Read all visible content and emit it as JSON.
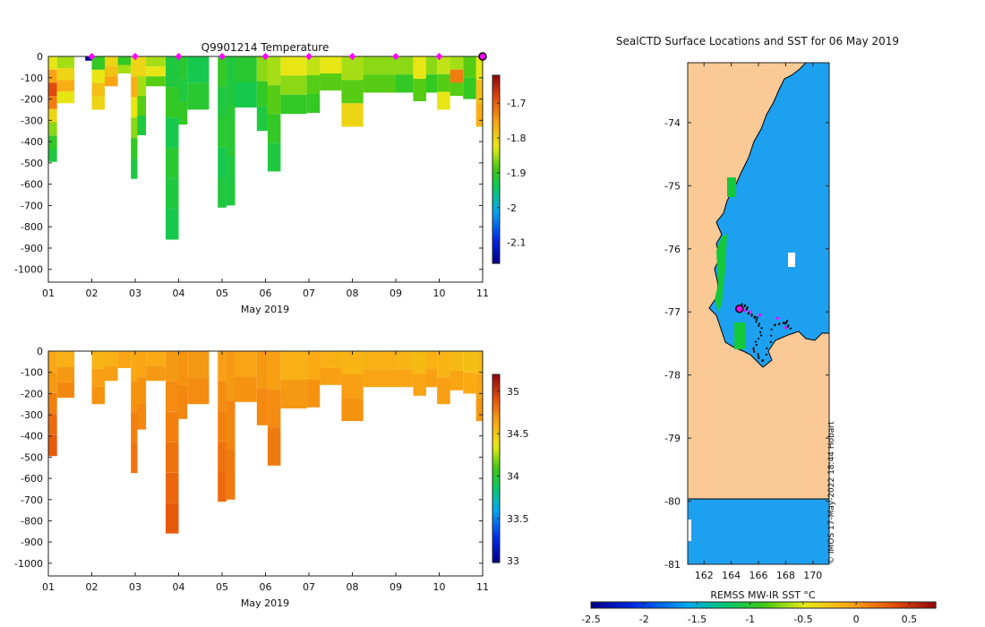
{
  "chart_data": [
    {
      "id": "temp",
      "type": "heatmap",
      "title": "Q9901214  Temperature",
      "xlabel": "May 2019",
      "ylabel": "",
      "xticks": [
        "01",
        "02",
        "03",
        "04",
        "05",
        "06",
        "07",
        "08",
        "09",
        "10",
        "11"
      ],
      "xlim": [
        1,
        11
      ],
      "ylim": [
        -1060,
        0
      ],
      "yticks": [
        0,
        -100,
        -200,
        -300,
        -400,
        -500,
        -600,
        -700,
        -800,
        -900,
        -1000
      ],
      "colorbar": {
        "ticks": [
          -1.7,
          -1.8,
          -1.9,
          -2,
          -2.1
        ],
        "range": [
          -2.16,
          -1.62
        ]
      },
      "markers": [
        2,
        3,
        4,
        5,
        6,
        7,
        8,
        9,
        10
      ],
      "highlight_x": 11,
      "profiles": [
        {
          "x": 1.0,
          "w": 0.2,
          "d": 495,
          "v": [
            -1.82,
            -1.75,
            -1.68,
            -1.72,
            -1.8,
            -1.86,
            -1.9,
            -1.92
          ]
        },
        {
          "x": 1.2,
          "w": 0.4,
          "d": 220,
          "v": [
            -1.85,
            -1.8,
            -1.76,
            -1.82
          ]
        },
        {
          "x": 1.85,
          "w": 0.3,
          "d": 20,
          "v": [
            -2.16
          ]
        },
        {
          "x": 2.0,
          "w": 0.3,
          "d": 250,
          "v": [
            -1.9,
            -1.82,
            -1.78,
            -1.8
          ]
        },
        {
          "x": 2.3,
          "w": 0.3,
          "d": 140,
          "v": [
            -1.8,
            -1.78,
            -1.75
          ]
        },
        {
          "x": 2.6,
          "w": 0.3,
          "d": 80,
          "v": [
            -1.9,
            -1.85
          ]
        },
        {
          "x": 2.9,
          "w": 0.15,
          "d": 575,
          "v": [
            -1.8,
            -1.76,
            -1.82,
            -1.86,
            -1.9,
            -1.92
          ]
        },
        {
          "x": 3.05,
          "w": 0.2,
          "d": 370,
          "v": [
            -1.8,
            -1.85,
            -1.88,
            -1.92
          ]
        },
        {
          "x": 3.25,
          "w": 0.45,
          "d": 140,
          "v": [
            -1.85,
            -1.82,
            -1.88
          ]
        },
        {
          "x": 3.7,
          "w": 0.3,
          "d": 860,
          "v": [
            -1.92,
            -1.9,
            -1.93,
            -1.91,
            -1.92,
            -1.93
          ]
        },
        {
          "x": 4.0,
          "w": 0.2,
          "d": 320,
          "v": [
            -1.91,
            -1.92,
            -1.9
          ]
        },
        {
          "x": 4.2,
          "w": 0.5,
          "d": 250,
          "v": [
            -1.93,
            -1.91
          ]
        },
        {
          "x": 4.9,
          "w": 0.2,
          "d": 710,
          "v": [
            -1.9,
            -1.92,
            -1.91,
            -1.93,
            -1.92
          ]
        },
        {
          "x": 5.1,
          "w": 0.2,
          "d": 700,
          "v": [
            -1.92,
            -1.91,
            -1.92
          ]
        },
        {
          "x": 5.3,
          "w": 0.5,
          "d": 240,
          "v": [
            -1.91,
            -1.93
          ]
        },
        {
          "x": 5.8,
          "w": 0.25,
          "d": 350,
          "v": [
            -1.86,
            -1.9,
            -1.92
          ]
        },
        {
          "x": 6.05,
          "w": 0.3,
          "d": 540,
          "v": [
            -1.85,
            -1.88,
            -1.9,
            -1.92
          ]
        },
        {
          "x": 6.35,
          "w": 0.6,
          "d": 270,
          "v": [
            -1.82,
            -1.86,
            -1.9
          ]
        },
        {
          "x": 6.95,
          "w": 0.3,
          "d": 265,
          "v": [
            -1.84,
            -1.88,
            -1.9
          ]
        },
        {
          "x": 7.25,
          "w": 0.5,
          "d": 160,
          "v": [
            -1.82,
            -1.88
          ]
        },
        {
          "x": 7.75,
          "w": 0.5,
          "d": 330,
          "v": [
            -1.85,
            -1.88,
            -1.8
          ]
        },
        {
          "x": 8.25,
          "w": 0.75,
          "d": 170,
          "v": [
            -1.86,
            -1.88
          ]
        },
        {
          "x": 9.0,
          "w": 0.4,
          "d": 170,
          "v": [
            -1.86,
            -1.9
          ]
        },
        {
          "x": 9.4,
          "w": 0.3,
          "d": 210,
          "v": [
            -1.82,
            -1.88
          ]
        },
        {
          "x": 9.7,
          "w": 0.25,
          "d": 170,
          "v": [
            -1.86,
            -1.9
          ]
        },
        {
          "x": 9.95,
          "w": 0.3,
          "d": 250,
          "v": [
            -1.84,
            -1.88,
            -1.82
          ]
        },
        {
          "x": 10.25,
          "w": 0.3,
          "d": 185,
          "v": [
            -1.85,
            -1.72,
            -1.88
          ]
        },
        {
          "x": 10.55,
          "w": 0.3,
          "d": 200,
          "v": [
            -1.88,
            -1.9
          ]
        },
        {
          "x": 10.85,
          "w": 0.15,
          "d": 330,
          "v": [
            -1.82,
            -1.78,
            -1.76
          ]
        }
      ]
    },
    {
      "id": "sal",
      "type": "heatmap",
      "title": "",
      "xlabel": "May 2019",
      "ylabel": "",
      "xticks": [
        "01",
        "02",
        "03",
        "04",
        "05",
        "06",
        "07",
        "08",
        "09",
        "10",
        "11"
      ],
      "xlim": [
        1,
        11
      ],
      "ylim": [
        -1060,
        0
      ],
      "yticks": [
        0,
        -100,
        -200,
        -300,
        -400,
        -500,
        -600,
        -700,
        -800,
        -900,
        -1000
      ],
      "colorbar": {
        "ticks": [
          35,
          34.5,
          34,
          33.5,
          33
        ],
        "range": [
          32.98,
          35.2
        ]
      },
      "profiles": [
        {
          "x": 1.0,
          "w": 0.2,
          "d": 495,
          "v": [
            34.65,
            34.7,
            34.78,
            34.85,
            34.9
          ]
        },
        {
          "x": 1.2,
          "w": 0.4,
          "d": 220,
          "v": [
            34.62,
            34.7,
            34.75
          ]
        },
        {
          "x": 2.0,
          "w": 0.3,
          "d": 250,
          "v": [
            34.6,
            34.68,
            34.72
          ]
        },
        {
          "x": 2.3,
          "w": 0.3,
          "d": 140,
          "v": [
            34.62,
            34.68
          ]
        },
        {
          "x": 2.6,
          "w": 0.3,
          "d": 80,
          "v": [
            34.66
          ]
        },
        {
          "x": 2.9,
          "w": 0.15,
          "d": 575,
          "v": [
            34.65,
            34.72,
            34.78,
            34.82
          ]
        },
        {
          "x": 3.05,
          "w": 0.2,
          "d": 370,
          "v": [
            34.66,
            34.72,
            34.76
          ]
        },
        {
          "x": 3.25,
          "w": 0.45,
          "d": 140,
          "v": [
            34.64,
            34.7
          ]
        },
        {
          "x": 3.7,
          "w": 0.3,
          "d": 860,
          "v": [
            34.7,
            34.74,
            34.78,
            34.82,
            34.86,
            34.9
          ]
        },
        {
          "x": 4.0,
          "w": 0.2,
          "d": 320,
          "v": [
            34.72,
            34.76
          ]
        },
        {
          "x": 4.2,
          "w": 0.5,
          "d": 250,
          "v": [
            34.7,
            34.74
          ]
        },
        {
          "x": 4.9,
          "w": 0.2,
          "d": 710,
          "v": [
            34.68,
            34.74,
            34.78,
            34.82,
            34.85
          ]
        },
        {
          "x": 5.1,
          "w": 0.2,
          "d": 700,
          "v": [
            34.7,
            34.76,
            34.8
          ]
        },
        {
          "x": 5.3,
          "w": 0.5,
          "d": 240,
          "v": [
            34.66,
            34.72
          ]
        },
        {
          "x": 5.8,
          "w": 0.25,
          "d": 350,
          "v": [
            34.7,
            34.75
          ]
        },
        {
          "x": 6.05,
          "w": 0.3,
          "d": 540,
          "v": [
            34.68,
            34.74,
            34.8
          ]
        },
        {
          "x": 6.35,
          "w": 0.6,
          "d": 270,
          "v": [
            34.62,
            34.7
          ]
        },
        {
          "x": 6.95,
          "w": 0.3,
          "d": 265,
          "v": [
            34.64,
            34.72
          ]
        },
        {
          "x": 7.25,
          "w": 0.5,
          "d": 160,
          "v": [
            34.62,
            34.68
          ]
        },
        {
          "x": 7.75,
          "w": 0.5,
          "d": 330,
          "v": [
            34.6,
            34.68,
            34.72
          ]
        },
        {
          "x": 8.25,
          "w": 0.75,
          "d": 170,
          "v": [
            34.62,
            34.66
          ]
        },
        {
          "x": 9.0,
          "w": 0.4,
          "d": 170,
          "v": [
            34.6,
            34.66
          ]
        },
        {
          "x": 9.4,
          "w": 0.3,
          "d": 210,
          "v": [
            34.58,
            34.66
          ]
        },
        {
          "x": 9.7,
          "w": 0.25,
          "d": 170,
          "v": [
            34.62,
            34.68
          ]
        },
        {
          "x": 9.95,
          "w": 0.3,
          "d": 250,
          "v": [
            34.6,
            34.68
          ]
        },
        {
          "x": 10.25,
          "w": 0.3,
          "d": 185,
          "v": [
            34.58,
            34.66
          ]
        },
        {
          "x": 10.55,
          "w": 0.3,
          "d": 200,
          "v": [
            34.56,
            34.64
          ]
        },
        {
          "x": 10.85,
          "w": 0.15,
          "d": 330,
          "v": [
            34.58,
            34.66,
            34.7
          ]
        }
      ]
    },
    {
      "id": "map",
      "type": "map",
      "title": "SealCTD Surface Locations and SST for 06 May 2019",
      "xlabel": "",
      "xticks": [
        "162",
        "164",
        "166",
        "168",
        "170"
      ],
      "xlim": [
        160.8,
        171.2
      ],
      "yticks": [
        "-74",
        "-75",
        "-76",
        "-77",
        "-78",
        "-79",
        "-80",
        "-81"
      ],
      "ylim": [
        -81.0,
        -73.05
      ],
      "sst_value": -1.4,
      "colorbar": {
        "label": "REMSS MW-IR SST °C",
        "ticks": [
          "-2.5",
          "-2",
          "-1.5",
          "-1",
          "-0.5",
          "0",
          "0.5"
        ],
        "range": [
          -2.5,
          0.75
        ]
      },
      "current_location": {
        "lon": 164.6,
        "lat": -76.95
      },
      "track": [
        [
          164.9,
          -76.9
        ],
        [
          165.3,
          -77.0
        ],
        [
          165.8,
          -77.1
        ],
        [
          166.2,
          -77.3
        ],
        [
          165.6,
          -77.6
        ],
        [
          166.4,
          -77.8
        ],
        [
          167.2,
          -77.2
        ],
        [
          168.0,
          -77.15
        ],
        [
          168.3,
          -77.3
        ]
      ],
      "credit": "© IMOS 17-May-2022 18:44 Hobart"
    }
  ]
}
